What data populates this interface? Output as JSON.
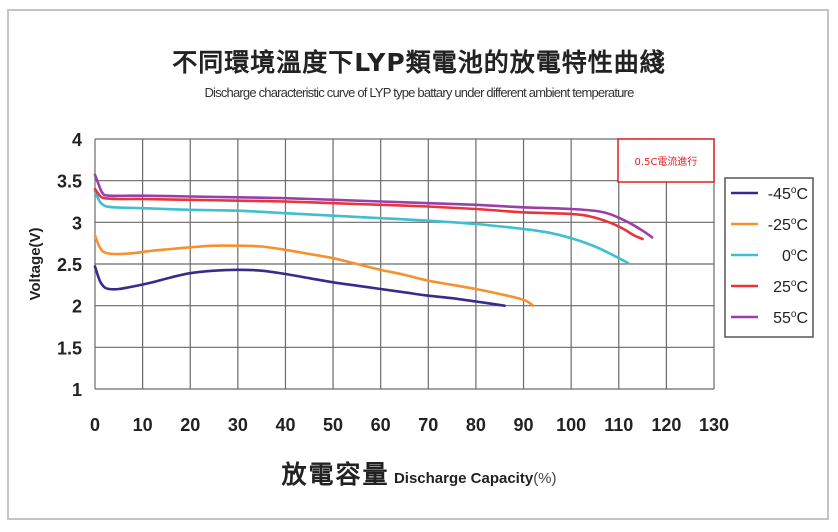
{
  "chart_data": {
    "type": "line",
    "title": "不同環境溫度下LYP類電池的放電特性曲綫",
    "subtitle": "Discharge characteristic curve of LYP type battary under different ambient temperature",
    "xlabel_cn": "放電容量",
    "xlabel_en": "Discharge Capacity",
    "xlabel_unit": "(%)",
    "ylabel": "Voltage(V)",
    "xlim": [
      0,
      130
    ],
    "ylim": [
      1,
      4
    ],
    "xticks": [
      0,
      10,
      20,
      30,
      40,
      50,
      60,
      70,
      80,
      90,
      100,
      110,
      120,
      130
    ],
    "yticks": [
      1,
      1.5,
      2,
      2.5,
      3,
      3.5,
      4
    ],
    "ytick_labels": [
      "1",
      "1.5",
      "2",
      "2.5",
      "3",
      "3.5",
      "4"
    ],
    "grid": true,
    "legend_position": "right",
    "annotation": "0.5C電流進行",
    "series": [
      {
        "name": "-45°C",
        "label_main": "-45",
        "color": "#3a2a8c",
        "points": [
          [
            0,
            2.47
          ],
          [
            1,
            2.3
          ],
          [
            2,
            2.22
          ],
          [
            3,
            2.2
          ],
          [
            5,
            2.2
          ],
          [
            8,
            2.23
          ],
          [
            12,
            2.28
          ],
          [
            16,
            2.34
          ],
          [
            20,
            2.39
          ],
          [
            25,
            2.42
          ],
          [
            30,
            2.43
          ],
          [
            35,
            2.42
          ],
          [
            40,
            2.38
          ],
          [
            45,
            2.33
          ],
          [
            50,
            2.28
          ],
          [
            55,
            2.24
          ],
          [
            60,
            2.2
          ],
          [
            65,
            2.16
          ],
          [
            70,
            2.12
          ],
          [
            75,
            2.09
          ],
          [
            80,
            2.05
          ],
          [
            86,
            2.0
          ]
        ]
      },
      {
        "name": "-25°C",
        "label_main": "-25",
        "color": "#f5922f",
        "points": [
          [
            0,
            2.84
          ],
          [
            1,
            2.7
          ],
          [
            2,
            2.64
          ],
          [
            4,
            2.62
          ],
          [
            8,
            2.63
          ],
          [
            12,
            2.66
          ],
          [
            16,
            2.68
          ],
          [
            20,
            2.7
          ],
          [
            25,
            2.72
          ],
          [
            30,
            2.72
          ],
          [
            35,
            2.71
          ],
          [
            40,
            2.67
          ],
          [
            45,
            2.62
          ],
          [
            50,
            2.57
          ],
          [
            55,
            2.5
          ],
          [
            60,
            2.43
          ],
          [
            65,
            2.37
          ],
          [
            70,
            2.3
          ],
          [
            75,
            2.25
          ],
          [
            80,
            2.2
          ],
          [
            85,
            2.14
          ],
          [
            90,
            2.07
          ],
          [
            92,
            2.0
          ]
        ]
      },
      {
        "name": "0°C",
        "label_main": "0",
        "color": "#3fbfcf",
        "points": [
          [
            0,
            3.37
          ],
          [
            1,
            3.25
          ],
          [
            2,
            3.2
          ],
          [
            4,
            3.18
          ],
          [
            10,
            3.17
          ],
          [
            20,
            3.15
          ],
          [
            30,
            3.14
          ],
          [
            40,
            3.11
          ],
          [
            50,
            3.08
          ],
          [
            60,
            3.05
          ],
          [
            70,
            3.02
          ],
          [
            80,
            2.98
          ],
          [
            90,
            2.92
          ],
          [
            95,
            2.88
          ],
          [
            100,
            2.81
          ],
          [
            105,
            2.71
          ],
          [
            109,
            2.6
          ],
          [
            112,
            2.51
          ]
        ]
      },
      {
        "name": "25°C",
        "label_main": "25",
        "color": "#e8343a",
        "points": [
          [
            0,
            3.4
          ],
          [
            1,
            3.32
          ],
          [
            2,
            3.29
          ],
          [
            5,
            3.28
          ],
          [
            10,
            3.28
          ],
          [
            20,
            3.27
          ],
          [
            30,
            3.26
          ],
          [
            40,
            3.25
          ],
          [
            50,
            3.23
          ],
          [
            60,
            3.21
          ],
          [
            70,
            3.19
          ],
          [
            80,
            3.16
          ],
          [
            90,
            3.12
          ],
          [
            100,
            3.1
          ],
          [
            104,
            3.07
          ],
          [
            108,
            3.0
          ],
          [
            111,
            2.92
          ],
          [
            113,
            2.85
          ],
          [
            115,
            2.8
          ]
        ]
      },
      {
        "name": "55°C",
        "label_main": "55",
        "color": "#9b3fa8",
        "points": [
          [
            0,
            3.57
          ],
          [
            0.8,
            3.45
          ],
          [
            1.6,
            3.35
          ],
          [
            3,
            3.32
          ],
          [
            10,
            3.32
          ],
          [
            20,
            3.31
          ],
          [
            30,
            3.3
          ],
          [
            40,
            3.29
          ],
          [
            50,
            3.27
          ],
          [
            60,
            3.25
          ],
          [
            70,
            3.23
          ],
          [
            80,
            3.21
          ],
          [
            90,
            3.18
          ],
          [
            100,
            3.16
          ],
          [
            106,
            3.13
          ],
          [
            109,
            3.08
          ],
          [
            112,
            3.0
          ],
          [
            115,
            2.9
          ],
          [
            117,
            2.82
          ]
        ]
      }
    ]
  }
}
